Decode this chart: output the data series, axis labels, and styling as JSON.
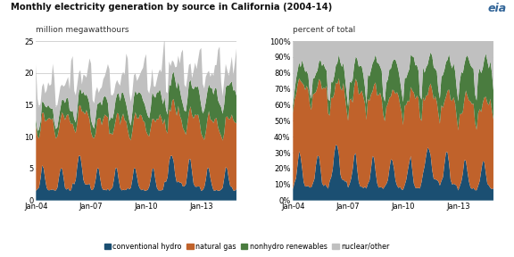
{
  "title": "Monthly electricity generation by source in California (2004-14)",
  "label_left": "million megawatthours",
  "label_right": "percent of total",
  "colors": {
    "hydro": "#1b4f72",
    "natural_gas": "#c0622b",
    "nonhydro": "#4a7c3f",
    "nuclear": "#c0c0c0"
  },
  "legend_labels": [
    "conventional hydro",
    "natural gas",
    "nonhydro renewables",
    "nuclear/other"
  ],
  "xtick_labels": [
    "Jan-04",
    "Jan-07",
    "Jan-10",
    "Jan-13"
  ],
  "xtick_positions": [
    0,
    36,
    72,
    108
  ],
  "ylim_left": [
    0,
    25
  ],
  "ylim_right": [
    0,
    1.0
  ],
  "yticks_left": [
    0,
    5,
    10,
    15,
    20,
    25
  ],
  "yticks_right": [
    0.0,
    0.1,
    0.2,
    0.3,
    0.4,
    0.5,
    0.6,
    0.7,
    0.8,
    0.9,
    1.0
  ],
  "bg_color": "#ffffff",
  "grid_color": "#cccccc",
  "n_months": 132
}
